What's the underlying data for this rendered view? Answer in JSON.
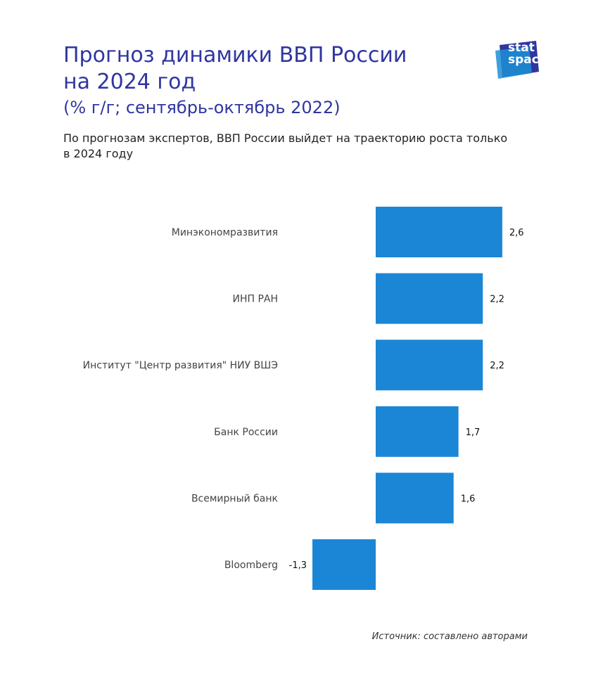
{
  "header": {
    "title_line1": "Прогноз динамики ВВП России",
    "title_line2": "на 2024 год",
    "title_line3": "(% г/г; сентябрь-октябрь 2022)",
    "subtitle": "По прогнозам экспертов, ВВП России выйдет на траекторию роста только в 2024 году"
  },
  "logo": {
    "line1": "stat",
    "line2": "space"
  },
  "source": "Источник: составлено авторами",
  "colors": {
    "bar": "#1b86d6",
    "title": "#2f36a1"
  },
  "chart_data": {
    "type": "bar",
    "orientation": "horizontal",
    "categories": [
      "Минэкономразвития",
      "ИНП РАН",
      "Институт \"Центр развития\" НИУ ВШЭ",
      "Банк России",
      "Всемирный банк",
      "Bloomberg"
    ],
    "values": [
      2.6,
      2.2,
      2.2,
      1.7,
      1.6,
      -1.3
    ],
    "data_labels": [
      "2,6",
      "2,2",
      "2,2",
      "1,7",
      "1,6",
      "-1,3"
    ],
    "xlim": [
      -1.3,
      2.6
    ],
    "grid": false,
    "axis_visible": false
  }
}
